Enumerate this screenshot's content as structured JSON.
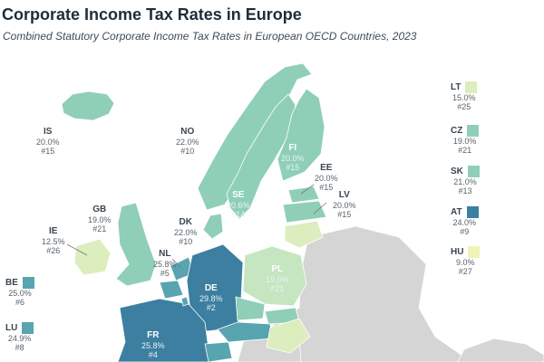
{
  "title": "Corporate Income Tax Rates in Europe",
  "subtitle": "Combined Statutory Corporate Income Tax Rates in European OECD Countries, 2023",
  "colors": {
    "very_low": "#dcedbe",
    "low": "#c5e6c0",
    "mid": "#8fcfb7",
    "high": "#58a4b1",
    "very_high": "#3c7fa0",
    "nodata": "#d5d5d6",
    "border": "#ffffff"
  },
  "countries": {
    "IS": {
      "code": "IS",
      "rate": "20.0%",
      "rank": "#15"
    },
    "NO": {
      "code": "NO",
      "rate": "22.0%",
      "rank": "#10"
    },
    "FI": {
      "code": "FI",
      "rate": "20.0%",
      "rank": "#15"
    },
    "EE": {
      "code": "EE",
      "rate": "20.0%",
      "rank": "#15"
    },
    "LV": {
      "code": "LV",
      "rate": "20.0%",
      "rank": "#15"
    },
    "SE": {
      "code": "SE",
      "rate": "20.6%",
      "rank": "#14"
    },
    "GB": {
      "code": "GB",
      "rate": "19.0%",
      "rank": "#21"
    },
    "DK": {
      "code": "DK",
      "rate": "22.0%",
      "rank": "#10"
    },
    "IE": {
      "code": "IE",
      "rate": "12.5%",
      "rank": "#26"
    },
    "NL": {
      "code": "NL",
      "rate": "25.8%",
      "rank": "#5"
    },
    "DE": {
      "code": "DE",
      "rate": "29.8%",
      "rank": "#2"
    },
    "PL": {
      "code": "PL",
      "rate": "19.0%",
      "rank": "#21"
    },
    "FR": {
      "code": "FR",
      "rate": "25.8%",
      "rank": "#4"
    },
    "BE": {
      "code": "BE",
      "rate": "25.0%",
      "rank": "#6"
    },
    "LU": {
      "code": "LU",
      "rate": "24.9%",
      "rank": "#8"
    },
    "LT": {
      "code": "LT",
      "rate": "15.0%",
      "rank": "#25"
    },
    "CZ": {
      "code": "CZ",
      "rate": "19.0%",
      "rank": "#21"
    },
    "SK": {
      "code": "SK",
      "rate": "21.0%",
      "rank": "#13"
    },
    "AT": {
      "code": "AT",
      "rate": "24.0%",
      "rank": "#9"
    },
    "HU": {
      "code": "HU",
      "rate": "9.0%",
      "rank": "#27"
    }
  }
}
